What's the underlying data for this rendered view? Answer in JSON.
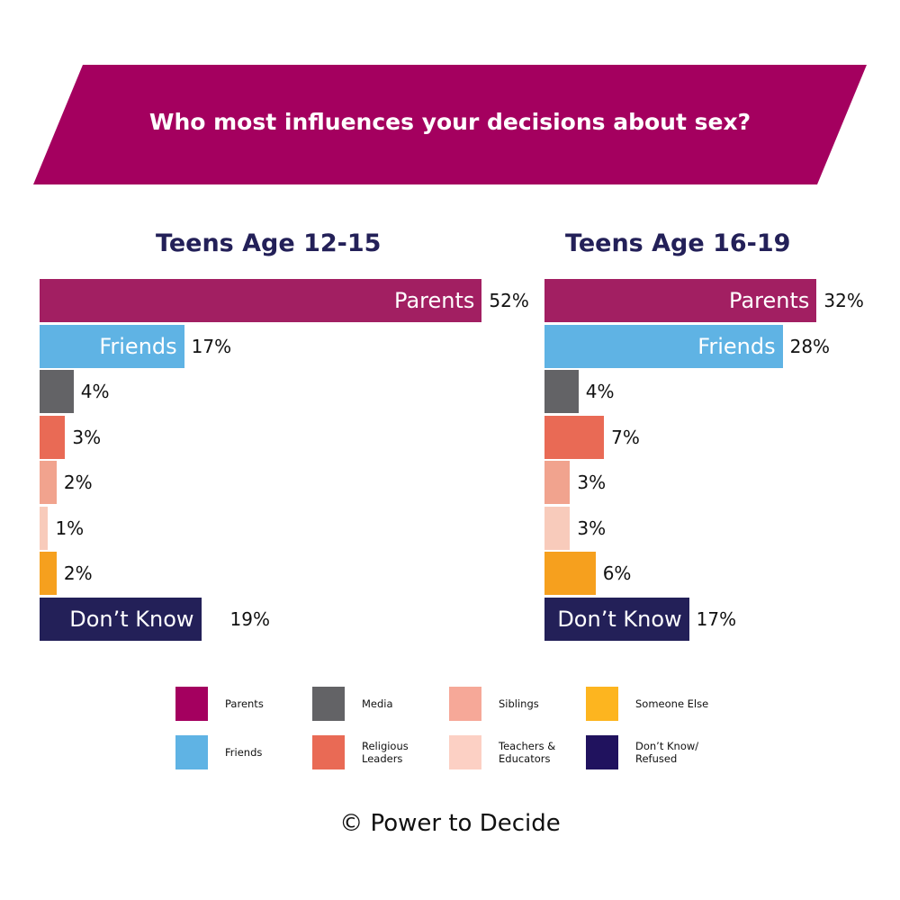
{
  "chart_data": [
    {
      "type": "bar",
      "orientation": "horizontal",
      "title": "Teens Age 12-15",
      "categories": [
        "Parents",
        "Friends",
        "Media",
        "Religious Leaders",
        "Siblings",
        "Teachers & Educators",
        "Someone Else",
        "Don't Know"
      ],
      "bar_labels": [
        "Parents",
        "Friends",
        "",
        "",
        "",
        "",
        "",
        "Don’t Know"
      ],
      "values": [
        52,
        17,
        4,
        3,
        2,
        1,
        2,
        19
      ],
      "value_labels": [
        "52%",
        "17%",
        "4%",
        "3%",
        "2%",
        "1%",
        "2%",
        "19%"
      ],
      "unit": "%",
      "grid": false
    },
    {
      "type": "bar",
      "orientation": "horizontal",
      "title": "Teens Age 16-19",
      "categories": [
        "Parents",
        "Friends",
        "Media",
        "Religious Leaders",
        "Siblings",
        "Teachers & Educators",
        "Someone Else",
        "Don't Know"
      ],
      "bar_labels": [
        "Parents",
        "Friends",
        "",
        "",
        "",
        "",
        "",
        "Don’t Know"
      ],
      "values": [
        32,
        28,
        4,
        7,
        3,
        3,
        6,
        17
      ],
      "value_labels": [
        "32%",
        "28%",
        "4%",
        "7%",
        "3%",
        "3%",
        "6%",
        "17%"
      ],
      "unit": "%",
      "grid": false
    }
  ],
  "title": "Who most influences your decisions about sex?",
  "bar_colors": [
    "#A21F62",
    "#5FB3E4",
    "#636366",
    "#E96A55",
    "#F1A38E",
    "#F8CBBB",
    "#F6A01E",
    "#232058"
  ],
  "legend": [
    {
      "label": "Parents",
      "color": "#A4005F"
    },
    {
      "label": "Friends",
      "color": "#5FB3E4"
    },
    {
      "label": "Media",
      "color": "#636366"
    },
    {
      "label": "Religious Leaders",
      "color": "#E96A55"
    },
    {
      "label": "Siblings",
      "color": "#F6A898"
    },
    {
      "label": "Teachers & Educators",
      "color": "#FCD0C4"
    },
    {
      "label": "Someone Else",
      "color": "#FDB51F"
    },
    {
      "label": "Don’t Know/ Refused",
      "color": "#20125E"
    }
  ],
  "banner_color": "#A4005F",
  "copyright": "© Power to Decide"
}
